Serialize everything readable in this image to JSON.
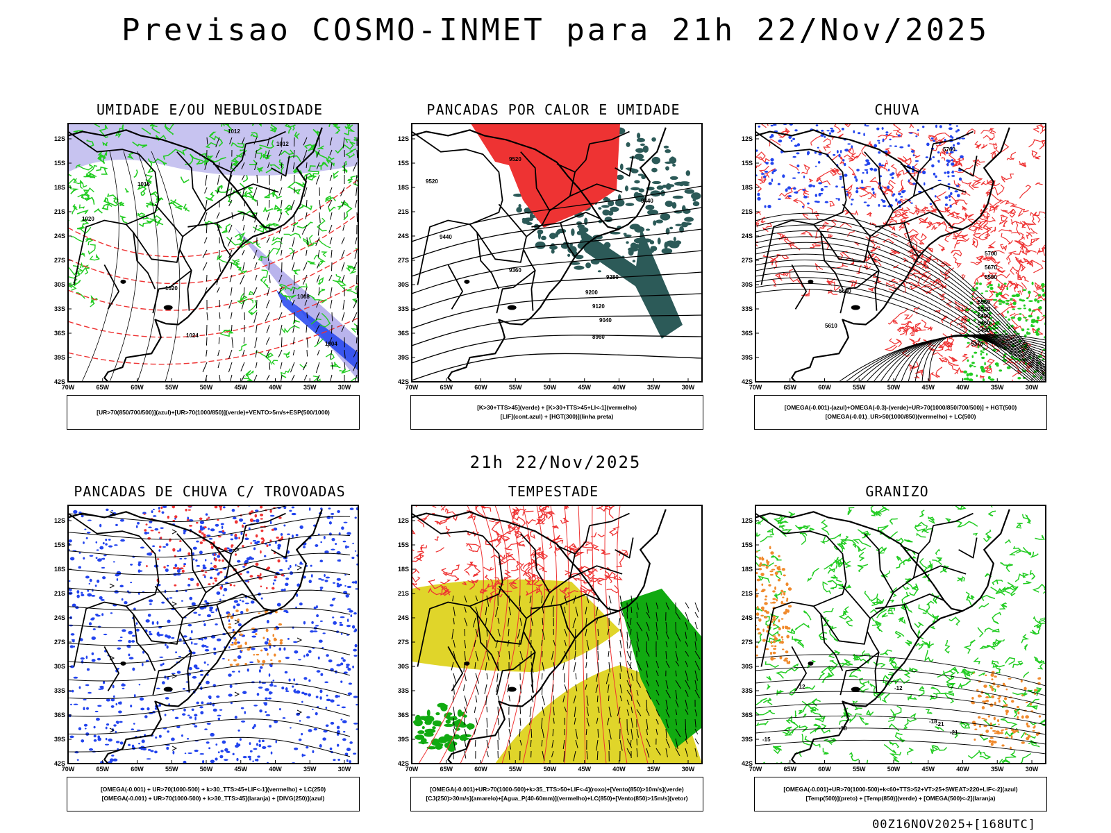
{
  "header": {
    "title": "Previsao COSMO-INMET  para 21h 22/Nov/2025",
    "mid_date": "21h 22/Nov/2025"
  },
  "footer": {
    "run_info": "00Z16NOV2025+[168UTC]"
  },
  "axes": {
    "lat_labels": [
      "12S",
      "15S",
      "18S",
      "21S",
      "24S",
      "27S",
      "30S",
      "33S",
      "36S",
      "39S",
      "42S"
    ],
    "lon_labels": [
      "70W",
      "65W",
      "60W",
      "55W",
      "50W",
      "45W",
      "40W",
      "35W",
      "30W"
    ]
  },
  "colors": {
    "green": "#22cc22",
    "red": "#ee3333",
    "blue": "#2244ee",
    "lavender": "#b9b4ec",
    "teal": "#2c5a58",
    "yellow": "#e0d52a",
    "dkgreen": "#11aa11",
    "orange": "#f08a2c"
  },
  "panels": [
    {
      "title": "UMIDADE E/OU NEBULOSIDADE",
      "legend": [
        "[UR>70(850/700/500)](azul)+[UR>70(1000/850)](verde)+VENTO>5m/s+ESP(500/1000)"
      ],
      "contour_labels": [
        "1012",
        "1012",
        "1016",
        "1020",
        "1020",
        "1024",
        "1008",
        "1004"
      ]
    },
    {
      "title": "PANCADAS POR CALOR E UMIDADE",
      "legend": [
        "[K>30+TTS>45](verde) + [K>30+TTS>45+LI<-1](vermelho)",
        "[LIF](cont.azul) + [HGT(300)](linha preta)"
      ],
      "contour_labels": [
        "9520",
        "9440",
        "9360",
        "9280",
        "9200",
        "9120",
        "9040",
        "8960",
        "9520",
        "9440"
      ]
    },
    {
      "title": "CHUVA",
      "legend": [
        "[OMEGA(-0.001)-(azul)+OMEGA(-0.3)-(verde)+UR>70(1000/850/700/500)] + HGT(500)",
        "[OMEGA(-0.01)_UR>50(1000/850)(vermelho) + LC(500)"
      ],
      "contour_labels": [
        "5760",
        "5700",
        "5670",
        "5640",
        "5610",
        "5580",
        "5550",
        "5520",
        "5490",
        "5460",
        "5430",
        "5400",
        "5370"
      ]
    },
    {
      "title": "PANCADAS DE CHUVA C/ TROVOADAS",
      "legend": [
        "[OMEGA(-0.001) + UR>70(1000-500) + k>30_TTS>45+LIF<-1](vermelho) + LC(250)",
        "[OMEGA(-0.001) + UR>70(1000-500) + k>30_TTS>45](laranja) + [DIVG(250)](azul)"
      ],
      "contour_labels": []
    },
    {
      "title": "TEMPESTADE",
      "legend": [
        "[OMEGA(-0.001)+UR>70(1000-500)+k>35_TTS>50+LIF<-4](roxo)+[Vento(850)>10m/s](verde)",
        "[CJ(250)>30m/s](amarelo)+[Agua_P(40-60mm)](vermelho)+LC(850)+[Vento(850)>15m/s](vetor)"
      ],
      "contour_labels": []
    },
    {
      "title": "GRANIZO",
      "legend": [
        "[OMEGA(-0.001)+UR>70(1000-500)+k<60+TTS>52+VT>25+SWEAT>220+LIF<-2](azul)",
        "[Temp(500)](preto) + [Temp(850)](verde) + [OMEGA(500)<-2](laranja)"
      ],
      "contour_labels": [
        "-12",
        "-12",
        "-15",
        "-18",
        "-21",
        "-18",
        "-21"
      ]
    }
  ]
}
